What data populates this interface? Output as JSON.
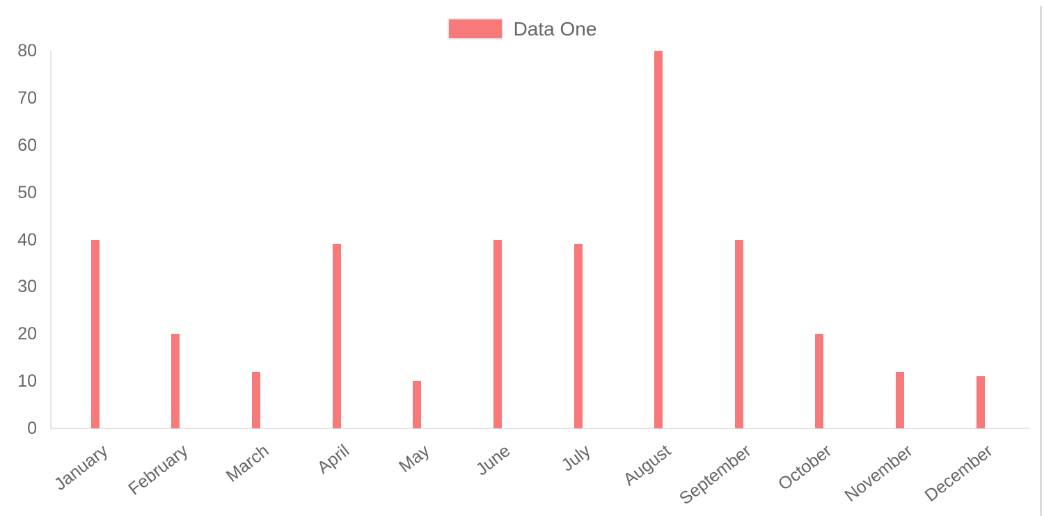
{
  "chart_data": {
    "type": "bar",
    "title": "",
    "categories": [
      "January",
      "February",
      "March",
      "April",
      "May",
      "June",
      "July",
      "August",
      "September",
      "October",
      "November",
      "December"
    ],
    "series": [
      {
        "name": "Data One",
        "values": [
          40,
          20,
          12,
          39,
          10,
          40,
          39,
          80,
          40,
          20,
          12,
          11
        ],
        "color": "#f87979"
      }
    ],
    "xlabel": "",
    "ylabel": "",
    "ylim": [
      0,
      80
    ],
    "y_ticks": [
      0,
      10,
      20,
      30,
      40,
      50,
      60,
      70,
      80
    ],
    "legend_position": "top",
    "grid": false,
    "x_label_rotation_deg": -38,
    "colors": {
      "bar": "#f87979",
      "axis_line": "#e6e6e6",
      "tick_label": "#666666",
      "legend_swatch_border": "#e9e9e9",
      "background": "#ffffff"
    }
  }
}
